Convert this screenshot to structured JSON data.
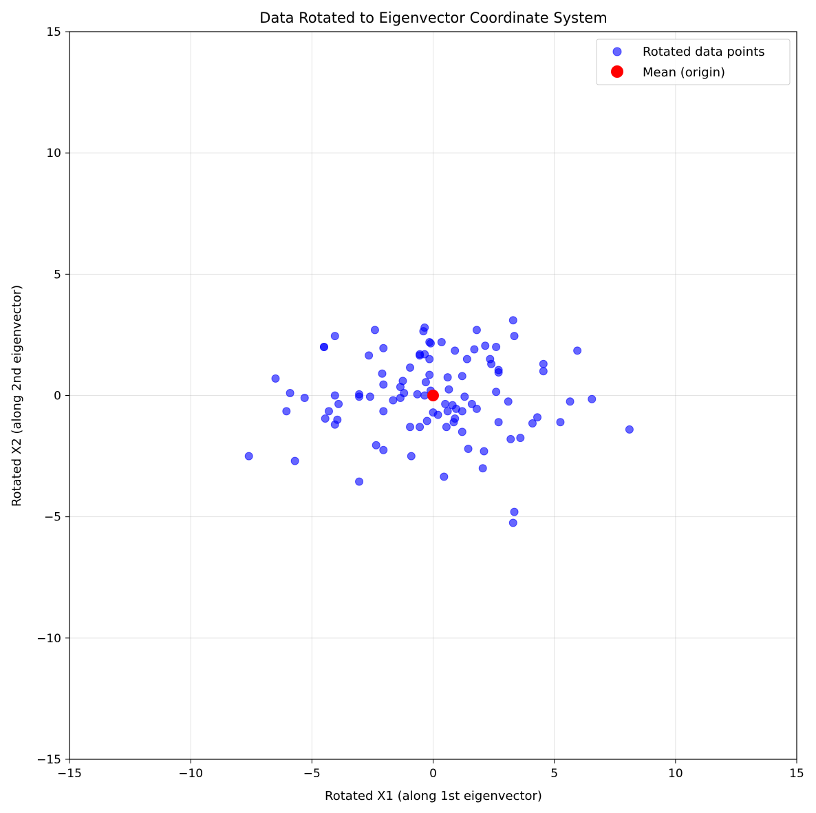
{
  "chart_data": {
    "type": "scatter",
    "title": "Data Rotated to Eigenvector Coordinate System",
    "xlabel": "Rotated X1 (along 1st eigenvector)",
    "ylabel": "Rotated X2 (along 2nd eigenvector)",
    "xlim": [
      -15,
      15
    ],
    "ylim": [
      -15,
      15
    ],
    "xticks": [
      -15,
      -10,
      -5,
      0,
      5,
      10,
      15
    ],
    "yticks": [
      -15,
      -10,
      -5,
      0,
      5,
      10,
      15
    ],
    "xtick_labels": [
      "−15",
      "−10",
      "−5",
      "0",
      "5",
      "10",
      "15"
    ],
    "ytick_labels": [
      "−15",
      "−10",
      "−5",
      "0",
      "5",
      "10",
      "15"
    ],
    "grid": true,
    "legend_position": "top-right",
    "series": [
      {
        "name": "Rotated data points",
        "color": "#0000ff",
        "alpha": 0.6,
        "marker": "circle",
        "points": [
          [
            -7.6,
            -2.5
          ],
          [
            -6.5,
            0.7
          ],
          [
            -6.05,
            -0.65
          ],
          [
            -5.9,
            0.1
          ],
          [
            -5.7,
            -2.7
          ],
          [
            -5.3,
            -0.1
          ],
          [
            -4.5,
            2.0
          ],
          [
            -4.5,
            2.0
          ],
          [
            -4.45,
            -0.95
          ],
          [
            -4.3,
            -0.65
          ],
          [
            -4.05,
            2.45
          ],
          [
            -4.05,
            0.0
          ],
          [
            -4.05,
            -1.2
          ],
          [
            -3.95,
            -1.0
          ],
          [
            -3.9,
            -0.35
          ],
          [
            -3.05,
            0.05
          ],
          [
            -3.05,
            -0.05
          ],
          [
            -3.05,
            -3.55
          ],
          [
            -2.65,
            1.65
          ],
          [
            -2.6,
            -0.05
          ],
          [
            -2.4,
            2.7
          ],
          [
            -2.35,
            -2.05
          ],
          [
            -2.1,
            0.9
          ],
          [
            -2.05,
            1.95
          ],
          [
            -2.05,
            0.45
          ],
          [
            -2.05,
            -0.65
          ],
          [
            -2.05,
            -2.25
          ],
          [
            -1.65,
            -0.2
          ],
          [
            -1.35,
            0.35
          ],
          [
            -1.35,
            -0.1
          ],
          [
            -1.25,
            0.6
          ],
          [
            -1.2,
            0.1
          ],
          [
            -0.95,
            1.15
          ],
          [
            -0.95,
            -1.3
          ],
          [
            -0.9,
            -2.5
          ],
          [
            -0.65,
            0.05
          ],
          [
            -0.55,
            1.7
          ],
          [
            -0.55,
            1.65
          ],
          [
            -0.55,
            -1.3
          ],
          [
            -0.4,
            2.65
          ],
          [
            -0.35,
            2.8
          ],
          [
            -0.35,
            1.7
          ],
          [
            -0.35,
            0.0
          ],
          [
            -0.3,
            0.55
          ],
          [
            -0.25,
            -1.05
          ],
          [
            -0.15,
            2.2
          ],
          [
            -0.15,
            1.5
          ],
          [
            -0.15,
            0.85
          ],
          [
            -0.1,
            2.15
          ],
          [
            -0.1,
            0.2
          ],
          [
            0.0,
            -0.7
          ],
          [
            0.2,
            -0.8
          ],
          [
            0.35,
            2.2
          ],
          [
            0.45,
            -3.35
          ],
          [
            0.5,
            -0.35
          ],
          [
            0.55,
            -1.3
          ],
          [
            0.6,
            0.75
          ],
          [
            0.6,
            -0.65
          ],
          [
            0.65,
            0.25
          ],
          [
            0.8,
            -0.4
          ],
          [
            0.85,
            -1.1
          ],
          [
            0.9,
            1.85
          ],
          [
            0.9,
            -0.95
          ],
          [
            0.95,
            -0.55
          ],
          [
            1.2,
            0.8
          ],
          [
            1.2,
            -1.5
          ],
          [
            1.2,
            -0.65
          ],
          [
            1.3,
            -0.05
          ],
          [
            1.4,
            1.5
          ],
          [
            1.45,
            -2.2
          ],
          [
            1.6,
            -0.35
          ],
          [
            1.7,
            1.9
          ],
          [
            1.8,
            2.7
          ],
          [
            1.8,
            -0.55
          ],
          [
            2.05,
            -3.0
          ],
          [
            2.1,
            -2.3
          ],
          [
            2.15,
            2.05
          ],
          [
            2.35,
            1.5
          ],
          [
            2.4,
            1.3
          ],
          [
            2.6,
            2.0
          ],
          [
            2.6,
            0.15
          ],
          [
            2.7,
            1.05
          ],
          [
            2.7,
            0.95
          ],
          [
            2.7,
            -1.1
          ],
          [
            3.1,
            -0.25
          ],
          [
            3.2,
            -1.8
          ],
          [
            3.3,
            3.1
          ],
          [
            3.35,
            2.45
          ],
          [
            3.35,
            -4.8
          ],
          [
            3.3,
            -5.25
          ],
          [
            3.6,
            -1.75
          ],
          [
            4.1,
            -1.15
          ],
          [
            4.3,
            -0.9
          ],
          [
            4.55,
            1.3
          ],
          [
            4.55,
            1.0
          ],
          [
            5.25,
            -1.1
          ],
          [
            5.65,
            -0.25
          ],
          [
            5.95,
            1.85
          ],
          [
            6.55,
            -0.15
          ],
          [
            8.1,
            -1.4
          ]
        ]
      },
      {
        "name": "Mean (origin)",
        "color": "#ff0000",
        "alpha": 1.0,
        "marker": "circle",
        "points": [
          [
            0,
            0
          ]
        ]
      }
    ]
  }
}
